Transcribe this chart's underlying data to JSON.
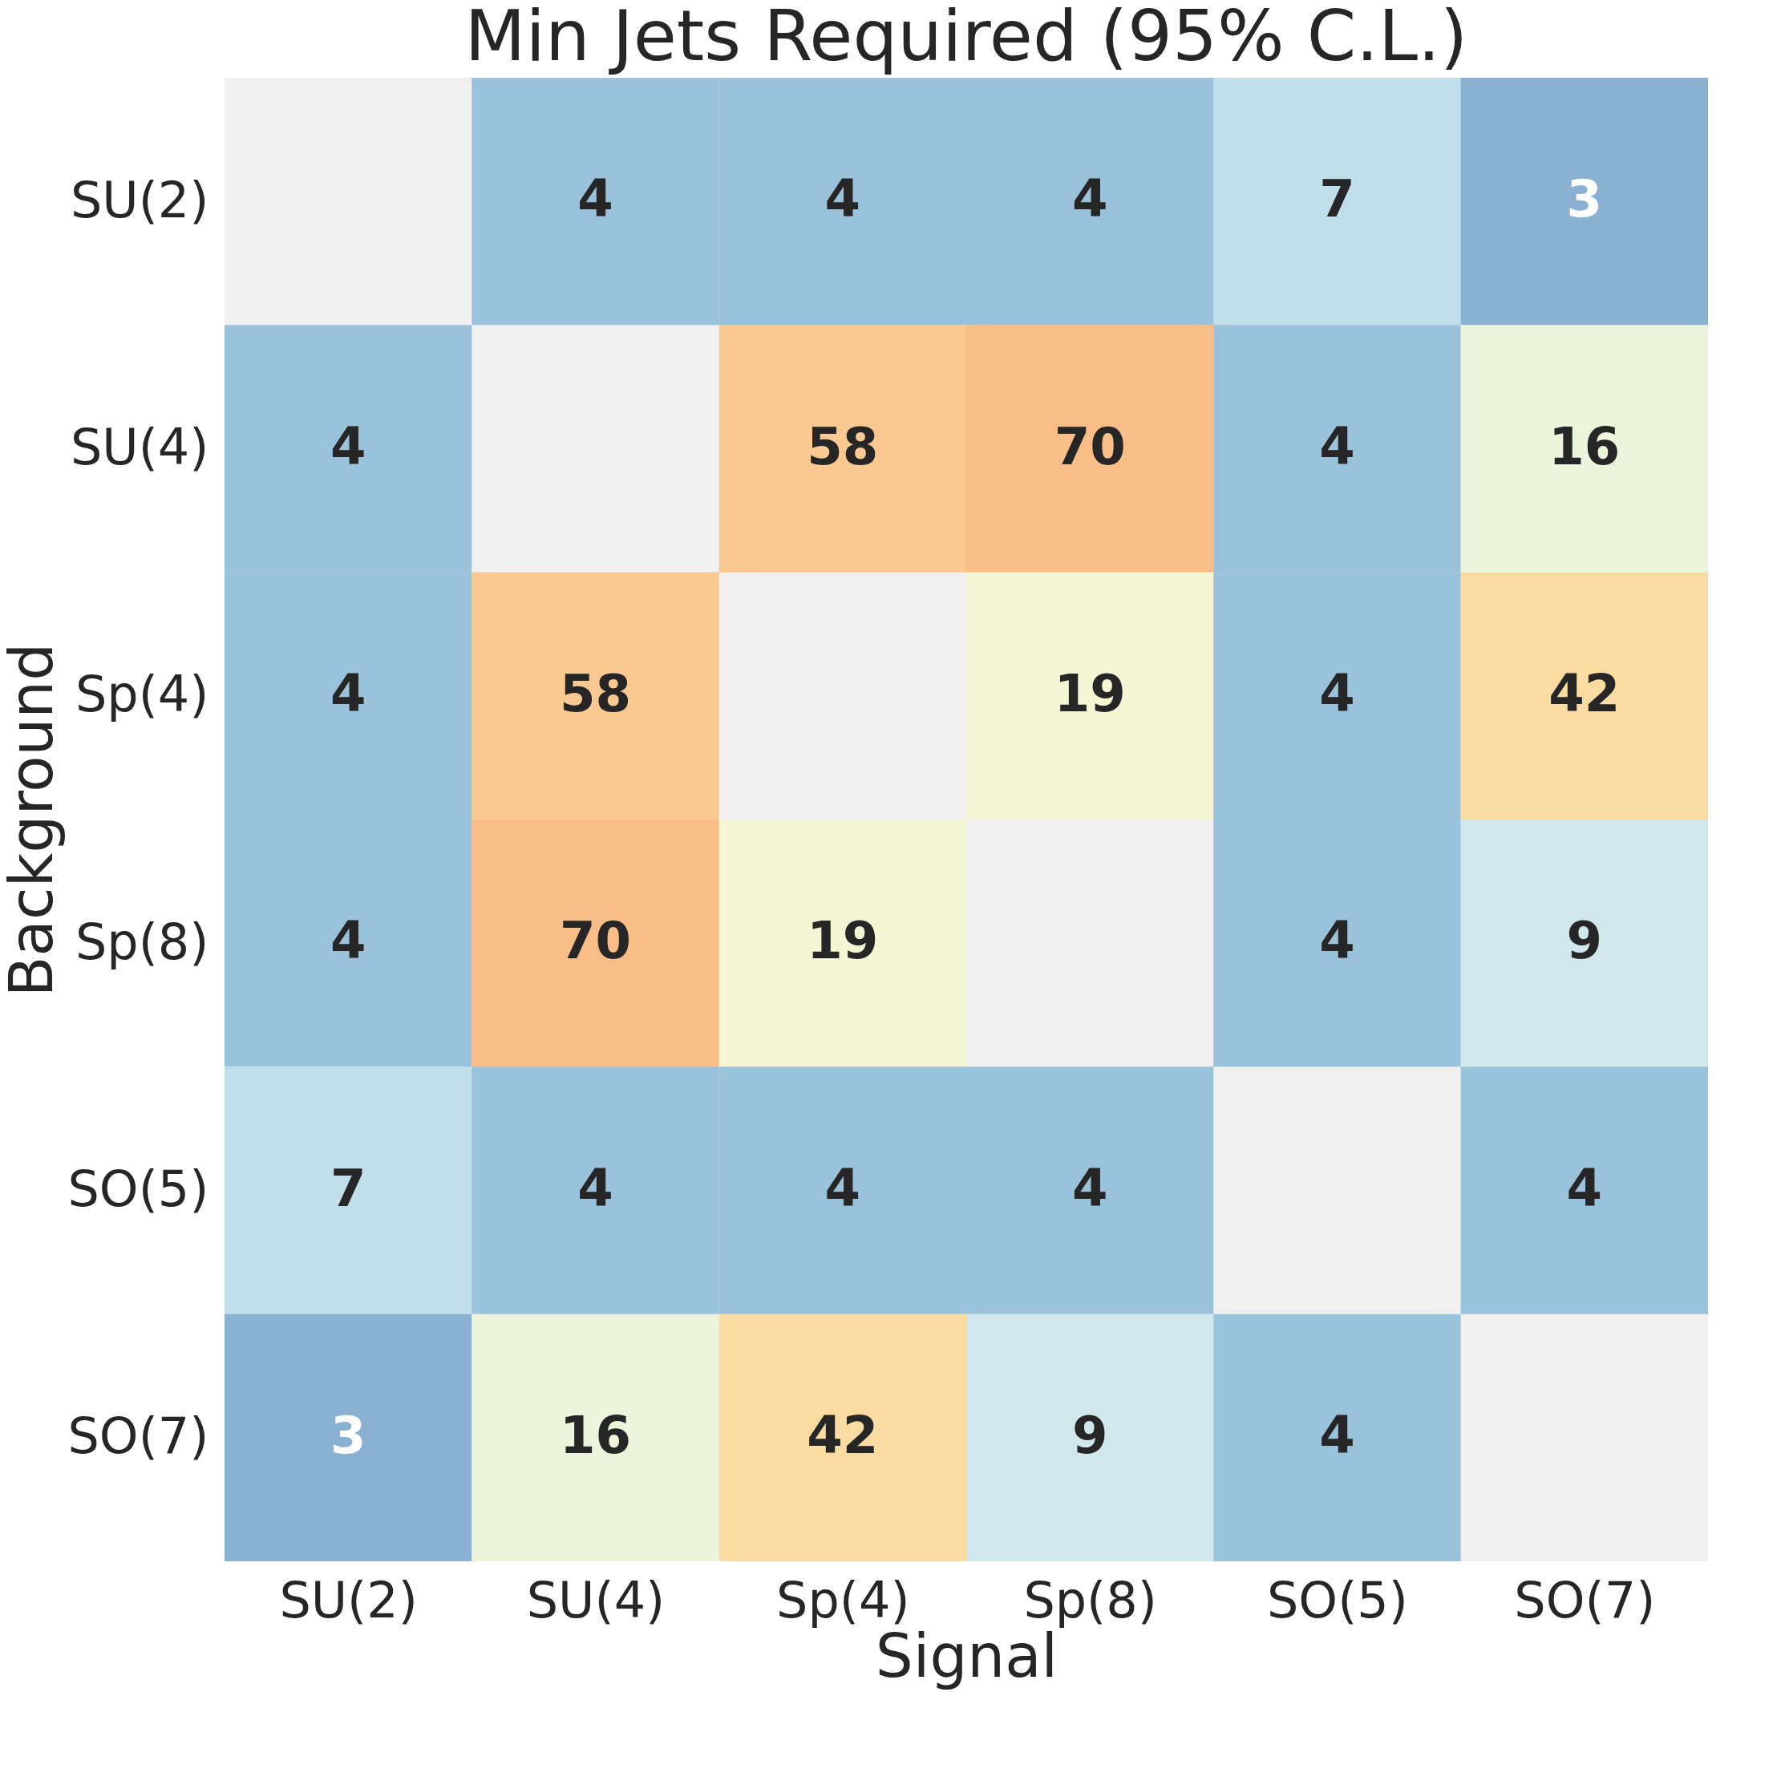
{
  "chart_data": {
    "type": "heatmap",
    "title": "Min Jets Required (95% C.L.)",
    "xlabel": "Signal",
    "ylabel": "Background",
    "categories": [
      "SU(2)",
      "SU(4)",
      "Sp(4)",
      "Sp(8)",
      "SO(5)",
      "SO(7)"
    ],
    "y_categories": [
      "SU(2)",
      "SU(4)",
      "Sp(4)",
      "Sp(8)",
      "SO(5)",
      "SO(7)"
    ],
    "cells": [
      [
        null,
        4,
        4,
        4,
        7,
        3
      ],
      [
        4,
        null,
        58,
        70,
        4,
        16
      ],
      [
        4,
        58,
        null,
        19,
        4,
        42
      ],
      [
        4,
        70,
        19,
        null,
        4,
        9
      ],
      [
        7,
        4,
        4,
        4,
        null,
        4
      ],
      [
        3,
        16,
        42,
        9,
        4,
        null
      ]
    ],
    "data_labels": true
  }
}
